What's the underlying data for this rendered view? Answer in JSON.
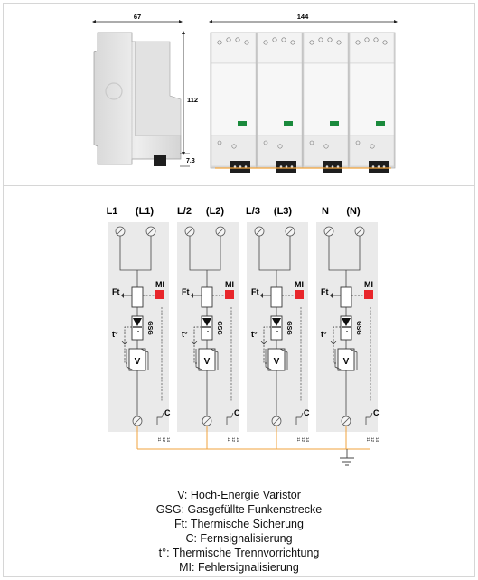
{
  "dimensions": {
    "width_label": "67",
    "length_label": "144",
    "height_label": "112",
    "offset_label": "7.3"
  },
  "modules": [
    {
      "top_label": "L1",
      "bottom_label": "(L1)",
      "ft": "Ft",
      "mi": "MI",
      "temp": "t°",
      "gsg": "GSG",
      "v": "V",
      "c": "C",
      "contacts": [
        "11",
        "12",
        "14"
      ]
    },
    {
      "top_label": "L/2",
      "bottom_label": "(L2)",
      "ft": "Ft",
      "mi": "MI",
      "temp": "t°",
      "gsg": "GSG",
      "v": "V",
      "c": "C",
      "contacts": [
        "11",
        "12",
        "14"
      ]
    },
    {
      "top_label": "L/3",
      "bottom_label": "(L3)",
      "ft": "Ft",
      "mi": "MI",
      "temp": "t°",
      "gsg": "GSG",
      "v": "V",
      "c": "C",
      "contacts": [
        "11",
        "12",
        "14"
      ]
    },
    {
      "top_label": "N",
      "bottom_label": "(N)",
      "ft": "Ft",
      "mi": "MI",
      "temp": "t°",
      "gsg": "GSG",
      "v": "V",
      "c": "C",
      "contacts": [
        "11",
        "12",
        "14"
      ]
    }
  ],
  "legend": [
    "V: Hoch-Energie Varistor",
    "GSG: Gasgefüllte Funkenstrecke",
    "Ft: Thermische Sicherung",
    "C: Fernsignalisierung",
    "t°: Thermische Trennvorrichtung",
    "MI: Fehlersignalisierung"
  ],
  "colors": {
    "module_bg": "#eaeaea",
    "indicator_red": "#e8262b",
    "indicator_green": "#1a8a3c",
    "signal_wire": "#f0a33c",
    "line": "#444444",
    "device_light": "#e6e6e6"
  }
}
